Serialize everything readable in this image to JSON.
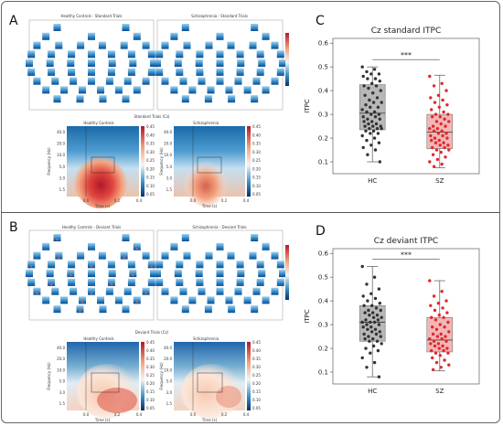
{
  "panels": {
    "A": {
      "letter": "A",
      "topomap_titles": [
        "Healthy Controls - Standard Trials",
        "Schizophrenia - Standard Trials"
      ],
      "tf_title": "Standard Trials (Cz)",
      "tf_left_title": "Healthy Controls",
      "tf_right_title": "Schizophrenia",
      "tf_ylabel": "Frequency (Hz)",
      "tf_xlabel": "Time (s)",
      "tf_yticks": [
        "40.0",
        "20.0",
        "10.0",
        "5.0",
        "3.0",
        "1.5"
      ],
      "tf_xticks": [
        "0.0",
        "0.2",
        "0.4"
      ],
      "cbar_ticks": [
        "0.45",
        "0.40",
        "0.35",
        "0.30",
        "0.25",
        "0.20",
        "0.15",
        "0.10",
        "0.05"
      ]
    },
    "B": {
      "letter": "B",
      "topomap_titles": [
        "Healthy Controls - Deviant Trials",
        "Schizophrenia - Deviant Trials"
      ],
      "tf_title": "Deviant Trials (Cz)",
      "tf_left_title": "Healthy Controls",
      "tf_right_title": "Schizophrenia",
      "tf_ylabel": "Frequency (Hz)",
      "tf_xlabel": "Time (s)",
      "tf_yticks": [
        "40.0",
        "20.0",
        "10.0",
        "5.0",
        "3.0",
        "1.5"
      ],
      "tf_xticks": [
        "0.0",
        "0.2",
        "0.4"
      ],
      "cbar_ticks": [
        "0.45",
        "0.40",
        "0.35",
        "0.30",
        "0.25",
        "0.20",
        "0.15",
        "0.10",
        "0.05"
      ]
    },
    "C": {
      "letter": "C"
    },
    "D": {
      "letter": "D"
    }
  },
  "chart_data": [
    {
      "type": "box",
      "title": "Cz standard ITPC",
      "ylabel": "ITPC",
      "categories": [
        "HC",
        "SZ"
      ],
      "ylim": [
        0.05,
        0.62
      ],
      "yticks": [
        0.1,
        0.2,
        0.3,
        0.4,
        0.5,
        0.6
      ],
      "significance": "***",
      "colors": [
        "#333333",
        "#e0282d"
      ],
      "box_fill": [
        "#b8b8b8",
        "#f2b6b6"
      ],
      "boxes": [
        {
          "name": "HC",
          "min": 0.1,
          "q1": 0.235,
          "median": 0.305,
          "q3": 0.425,
          "max": 0.5
        },
        {
          "name": "SZ",
          "min": 0.075,
          "q1": 0.155,
          "median": 0.225,
          "q3": 0.3,
          "max": 0.465
        }
      ],
      "points": [
        [
          0.5,
          0.49,
          0.48,
          0.47,
          0.47,
          0.46,
          0.45,
          0.45,
          0.44,
          0.43,
          0.42,
          0.42,
          0.41,
          0.4,
          0.39,
          0.38,
          0.37,
          0.36,
          0.35,
          0.35,
          0.34,
          0.33,
          0.33,
          0.32,
          0.31,
          0.31,
          0.3,
          0.3,
          0.29,
          0.29,
          0.28,
          0.28,
          0.27,
          0.27,
          0.26,
          0.26,
          0.25,
          0.25,
          0.25,
          0.24,
          0.24,
          0.24,
          0.23,
          0.23,
          0.22,
          0.22,
          0.21,
          0.2,
          0.19,
          0.18,
          0.17,
          0.16,
          0.15,
          0.13,
          0.1
        ],
        [
          0.46,
          0.43,
          0.42,
          0.4,
          0.38,
          0.37,
          0.36,
          0.35,
          0.34,
          0.33,
          0.32,
          0.31,
          0.3,
          0.3,
          0.29,
          0.29,
          0.28,
          0.27,
          0.27,
          0.26,
          0.25,
          0.25,
          0.24,
          0.24,
          0.23,
          0.23,
          0.22,
          0.22,
          0.21,
          0.21,
          0.2,
          0.2,
          0.19,
          0.19,
          0.18,
          0.18,
          0.17,
          0.17,
          0.16,
          0.16,
          0.15,
          0.15,
          0.14,
          0.13,
          0.12,
          0.11,
          0.1,
          0.09,
          0.08
        ]
      ]
    },
    {
      "type": "box",
      "title": "Cz deviant ITPC",
      "ylabel": "ITPC",
      "categories": [
        "HC",
        "SZ"
      ],
      "ylim": [
        0.05,
        0.62
      ],
      "yticks": [
        0.1,
        0.2,
        0.3,
        0.4,
        0.5,
        0.6
      ],
      "significance": "***",
      "colors": [
        "#333333",
        "#e0282d"
      ],
      "box_fill": [
        "#b8b8b8",
        "#f2b6b6"
      ],
      "boxes": [
        {
          "name": "HC",
          "min": 0.08,
          "q1": 0.23,
          "median": 0.31,
          "q3": 0.38,
          "max": 0.545
        },
        {
          "name": "SZ",
          "min": 0.105,
          "q1": 0.185,
          "median": 0.235,
          "q3": 0.33,
          "max": 0.485
        }
      ],
      "points": [
        [
          0.545,
          0.5,
          0.47,
          0.45,
          0.43,
          0.42,
          0.41,
          0.4,
          0.39,
          0.38,
          0.38,
          0.37,
          0.36,
          0.36,
          0.35,
          0.35,
          0.34,
          0.34,
          0.33,
          0.33,
          0.32,
          0.32,
          0.31,
          0.31,
          0.31,
          0.3,
          0.3,
          0.29,
          0.29,
          0.28,
          0.28,
          0.27,
          0.27,
          0.26,
          0.26,
          0.25,
          0.25,
          0.24,
          0.24,
          0.23,
          0.23,
          0.22,
          0.21,
          0.2,
          0.19,
          0.18,
          0.16,
          0.14,
          0.12,
          0.08
        ],
        [
          0.485,
          0.44,
          0.42,
          0.4,
          0.39,
          0.38,
          0.37,
          0.36,
          0.35,
          0.34,
          0.33,
          0.33,
          0.32,
          0.31,
          0.3,
          0.29,
          0.29,
          0.28,
          0.27,
          0.26,
          0.26,
          0.25,
          0.25,
          0.24,
          0.24,
          0.23,
          0.23,
          0.22,
          0.22,
          0.21,
          0.21,
          0.2,
          0.2,
          0.19,
          0.19,
          0.18,
          0.18,
          0.17,
          0.16,
          0.15,
          0.14,
          0.13,
          0.12,
          0.11
        ]
      ]
    }
  ]
}
